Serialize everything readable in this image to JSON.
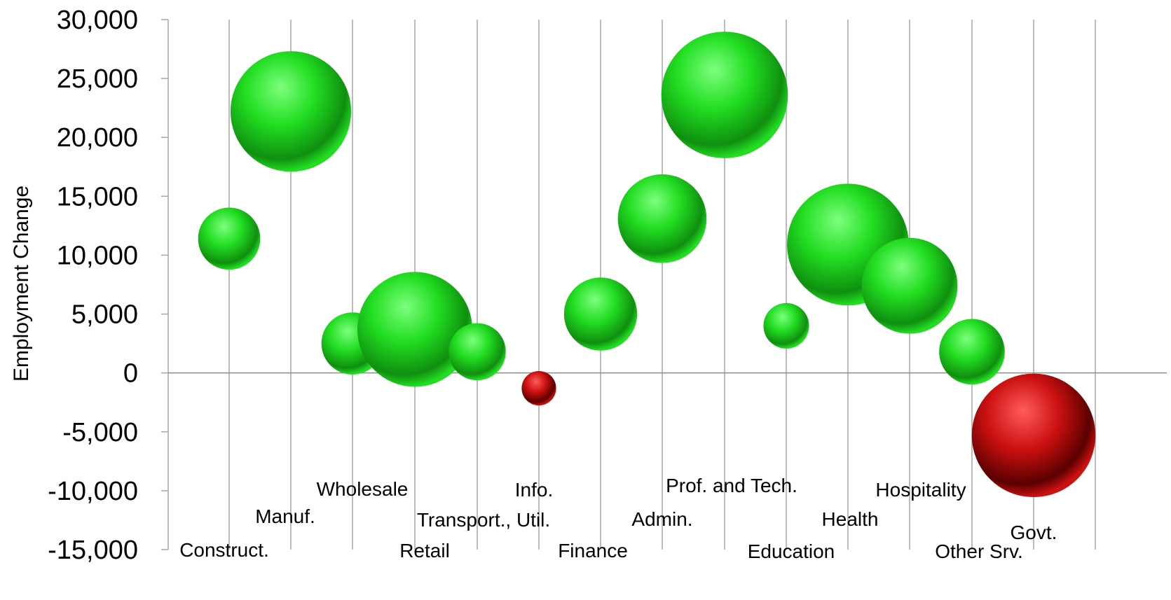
{
  "chart_data": {
    "type": "bubble",
    "ylabel": "Employment Change",
    "ylim": [
      -15000,
      30000
    ],
    "y_ticks": [
      30000,
      25000,
      20000,
      15000,
      10000,
      5000,
      0,
      -5000,
      -10000,
      -15000
    ],
    "y_tick_labels": [
      "30,000",
      "25,000",
      "20,000",
      "15,000",
      "10,000",
      "5,000",
      "0",
      "-5,000",
      "-10,000",
      "-15,000"
    ],
    "grid": "vertical",
    "colors": {
      "positive": "#22dd22",
      "negative": "#cc1111",
      "gridline": "#a6a6a6",
      "zero_line": "#8c8c8c"
    },
    "categories": [
      "Construct.",
      "Manuf.",
      "Wholesale",
      "Retail",
      "Transport., Util.",
      "Info.",
      "Finance",
      "Admin.",
      "Prof. and Tech.",
      "Education",
      "Health",
      "Hospitality",
      "Other Srv.",
      "Govt."
    ],
    "values": [
      11400,
      22200,
      2500,
      3700,
      1800,
      -1300,
      5000,
      13100,
      23600,
      4000,
      10900,
      7400,
      1800,
      -5300
    ],
    "bubble_sizes": [
      2.6,
      9.8,
      2.6,
      8.9,
      2.2,
      0.8,
      3.6,
      5.3,
      10.8,
      1.4,
      10.0,
      6.2,
      2.9,
      10.3
    ]
  }
}
